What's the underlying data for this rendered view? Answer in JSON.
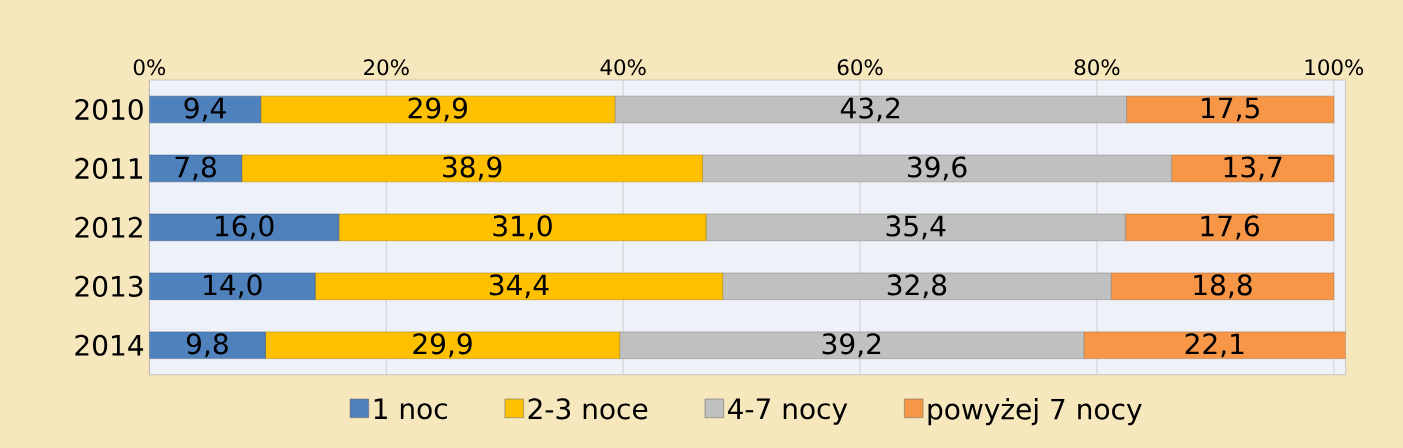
{
  "chart_data": {
    "type": "bar",
    "orientation": "horizontal",
    "stacked": true,
    "categories": [
      "2010",
      "2011",
      "2012",
      "2013",
      "2014"
    ],
    "series": [
      {
        "name": "1 noc",
        "color": "#4f81bd",
        "values": [
          9.4,
          7.8,
          16.0,
          14.0,
          9.8
        ],
        "value_labels": [
          "9,4",
          "7,8",
          "16,0",
          "14,0",
          "9,8"
        ]
      },
      {
        "name": "2-3 noce",
        "color": "#ffc000",
        "values": [
          29.9,
          38.9,
          31.0,
          34.4,
          29.9
        ],
        "value_labels": [
          "29,9",
          "38,9",
          "31,0",
          "34,4",
          "29,9"
        ]
      },
      {
        "name": "4-7 nocy",
        "color": "#c0c0c0",
        "values": [
          43.2,
          39.6,
          35.4,
          32.8,
          39.2
        ],
        "value_labels": [
          "43,2",
          "39,6",
          "35,4",
          "32,8",
          "39,2"
        ]
      },
      {
        "name": "powyżej 7 nocy",
        "color": "#f79646",
        "values": [
          17.5,
          13.7,
          17.6,
          18.8,
          22.1
        ],
        "value_labels": [
          "17,5",
          "13,7",
          "17,6",
          "18,8",
          "22,1"
        ]
      }
    ],
    "xlim": [
      0,
      101
    ],
    "xticks": [
      {
        "value": 0,
        "label": "0%"
      },
      {
        "value": 20,
        "label": "20%"
      },
      {
        "value": 40,
        "label": "40%"
      },
      {
        "value": 60,
        "label": "60%"
      },
      {
        "value": 80,
        "label": "80%"
      },
      {
        "value": 100,
        "label": "100%"
      }
    ],
    "grid": "x",
    "legend": "bottom"
  }
}
